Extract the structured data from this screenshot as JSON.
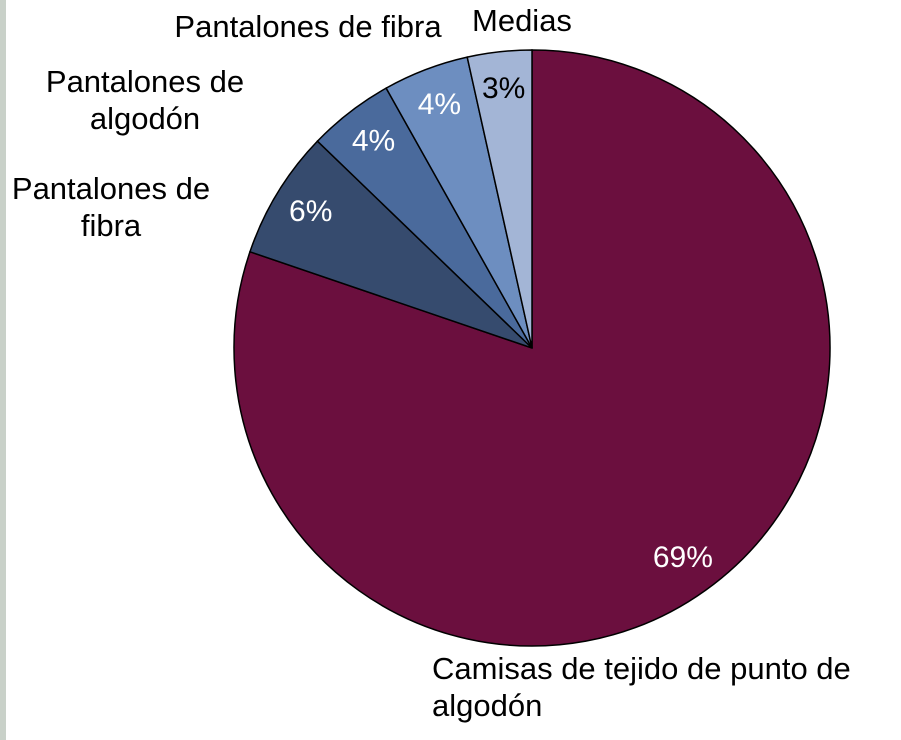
{
  "chart_data": {
    "type": "pie",
    "categories": [
      "Camisas de tejido de punto de algodón",
      "Pantalones de fibra",
      "Pantalones de algodón",
      "Pantalones de fibra",
      "Medias"
    ],
    "values": [
      69,
      6,
      4,
      4,
      3
    ],
    "value_labels": [
      "69%",
      "6%",
      "4%",
      "4%",
      "3%"
    ],
    "colors": [
      "#6b0f3e",
      "#364b6e",
      "#4a6a9c",
      "#6d8ec0",
      "#a3b5d6"
    ]
  }
}
